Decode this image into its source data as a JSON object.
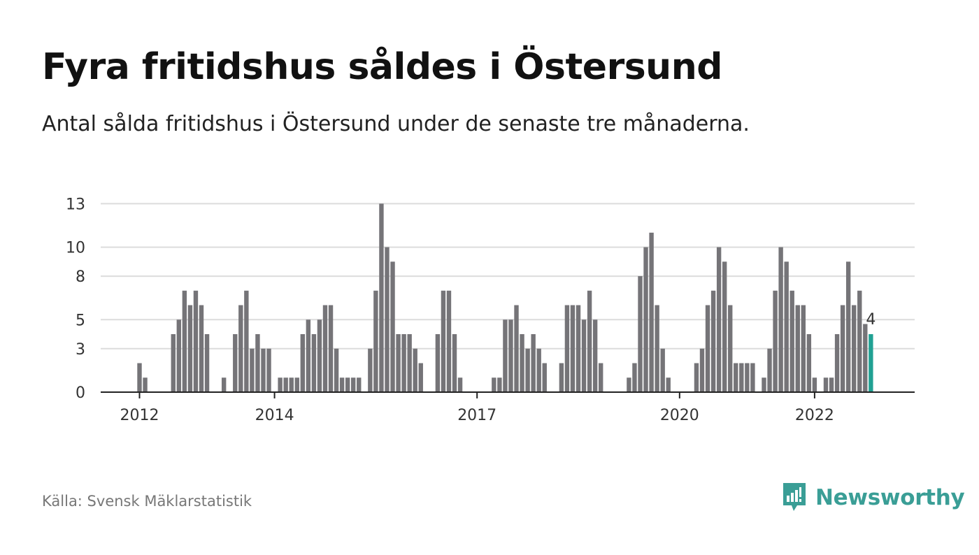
{
  "title": "Fyra fritidshus såldes i Östersund",
  "subtitle": "Antal sålda fritidshus i Östersund under de senaste tre månaderna.",
  "source": "Källa: Svensk Mäklarstatistik",
  "brand": {
    "name": "Newsworthy",
    "color": "#3a9e96"
  },
  "colors": {
    "bar": "#757478",
    "highlight": "#21a193",
    "grid": "#dcdcdc",
    "axis": "#222222"
  },
  "chart_data": {
    "type": "bar",
    "title": "Fyra fritidshus såldes i Östersund",
    "xlabel": "",
    "ylabel": "",
    "ylim": [
      0,
      13.5
    ],
    "yticks": [
      0,
      3,
      5,
      8,
      10,
      13
    ],
    "ytick_labels": [
      "0",
      "3",
      "5",
      "8",
      "10",
      "13"
    ],
    "xticks": [
      {
        "label": "2012",
        "index": 0
      },
      {
        "label": "2014",
        "index": 24
      },
      {
        "label": "2017",
        "index": 60
      },
      {
        "label": "2020",
        "index": 96
      },
      {
        "label": "2022",
        "index": 120
      }
    ],
    "grid": true,
    "highlight_label": "4",
    "values": [
      2,
      1,
      null,
      null,
      null,
      null,
      4,
      5,
      7,
      6,
      7,
      6,
      4,
      null,
      null,
      1,
      null,
      4,
      6,
      7,
      3,
      4,
      3,
      3,
      null,
      1,
      1,
      1,
      1,
      4,
      5,
      4,
      5,
      6,
      6,
      3,
      1,
      1,
      1,
      1,
      null,
      3,
      7,
      13,
      10,
      9,
      4,
      4,
      4,
      3,
      2,
      null,
      null,
      4,
      7,
      7,
      4,
      1,
      null,
      null,
      null,
      null,
      null,
      1,
      1,
      5,
      5,
      6,
      4,
      3,
      4,
      3,
      2,
      null,
      null,
      2,
      6,
      6,
      6,
      5,
      7,
      5,
      2,
      null,
      null,
      null,
      null,
      1,
      2,
      8,
      10,
      11,
      6,
      3,
      1,
      null,
      null,
      null,
      null,
      2,
      3,
      6,
      7,
      10,
      9,
      6,
      2,
      2,
      2,
      2,
      null,
      1,
      3,
      7,
      10,
      9,
      7,
      6,
      6,
      4,
      1,
      null,
      1,
      1,
      4,
      6,
      9,
      6,
      7,
      4.7,
      4
    ]
  }
}
